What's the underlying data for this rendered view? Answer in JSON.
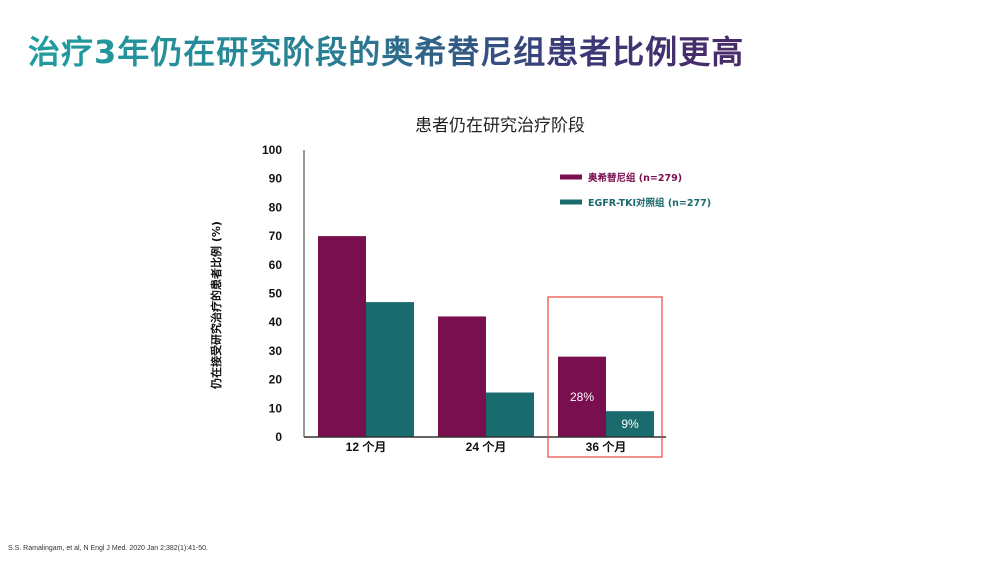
{
  "slide": {
    "title": "治疗3年仍在研究阶段的奥希替尼组患者比例更高",
    "citation": "S.S. Ramalingam,  et al, N Engl J Med. 2020 Jan 2;382(1):41-50."
  },
  "colors": {
    "series_osimertinib": "#7a0f4f",
    "series_control": "#1a6b6d",
    "highlight_box": "#e8473f",
    "axis": "#333333"
  },
  "chart_data": {
    "type": "bar",
    "title": "患者仍在研究治疗阶段",
    "xlabel": "",
    "ylabel": "仍在接受研究治疗的患者比例 (%)",
    "ylim": [
      0,
      100
    ],
    "yticks": [
      0,
      10,
      20,
      30,
      40,
      50,
      60,
      70,
      80,
      90,
      100
    ],
    "categories": [
      "12 个月",
      "24 个月",
      "36 个月"
    ],
    "series": [
      {
        "name": "奥希替尼组 (n=279)",
        "values": [
          70,
          42,
          28
        ],
        "color": "#7a0f4f"
      },
      {
        "name": "EGFR-TKI对照组 (n=277)",
        "values": [
          47,
          15.5,
          9
        ],
        "color": "#1a6b6d"
      }
    ],
    "data_labels": [
      {
        "category_index": 2,
        "series_index": 0,
        "text": "28%"
      },
      {
        "category_index": 2,
        "series_index": 1,
        "text": "9%"
      }
    ],
    "highlight": {
      "category_index": 2
    },
    "legend_position": "top-right",
    "grid": false
  }
}
